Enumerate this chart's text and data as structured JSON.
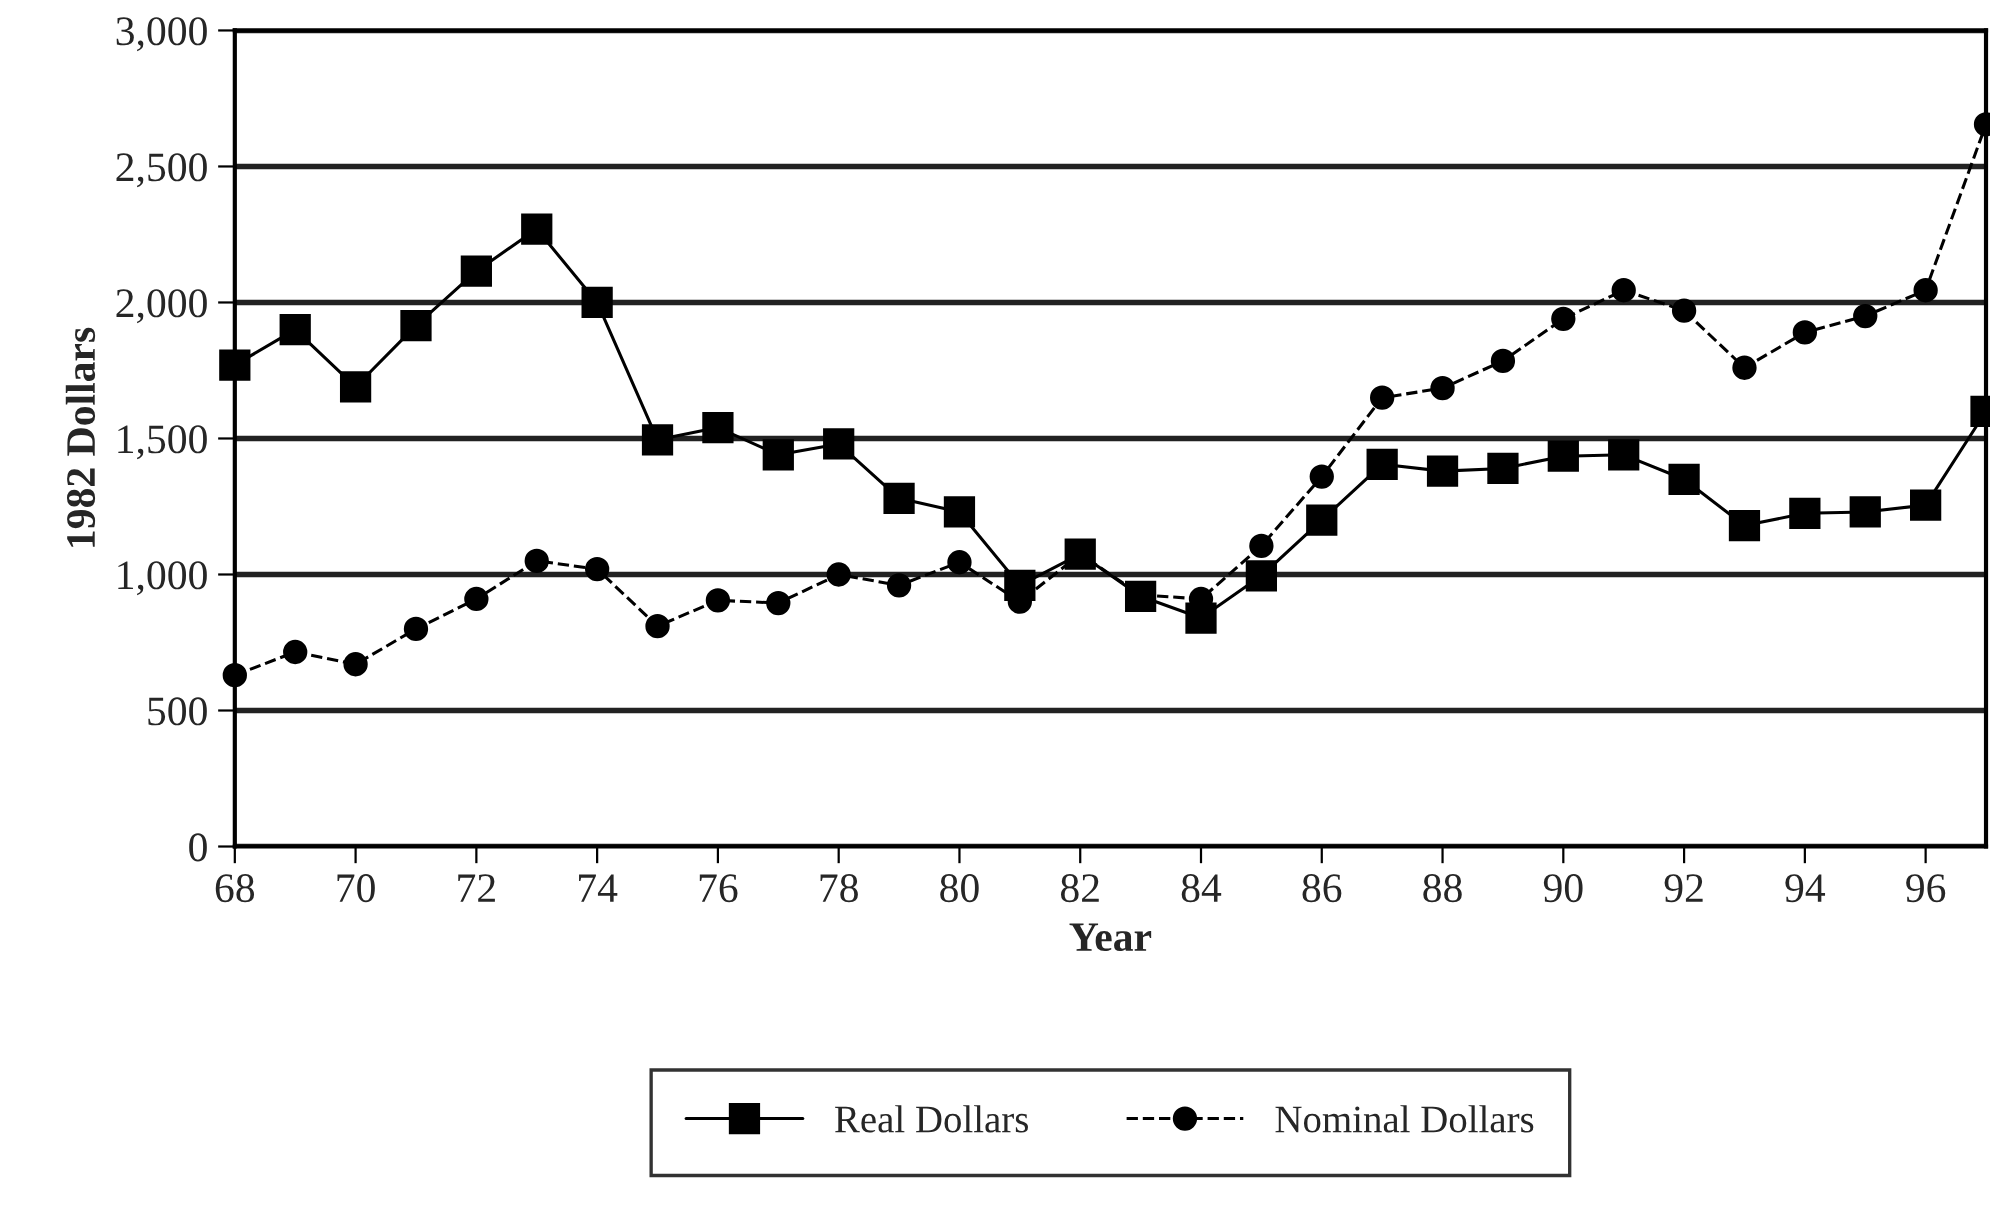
{
  "chart_data": {
    "type": "line",
    "xlabel": "Year",
    "ylabel": "1982 Dollars",
    "x": [
      68,
      69,
      70,
      71,
      72,
      73,
      74,
      75,
      76,
      77,
      78,
      79,
      80,
      81,
      82,
      83,
      84,
      85,
      86,
      87,
      88,
      89,
      90,
      91,
      92,
      93,
      94,
      95,
      96,
      97
    ],
    "series": [
      {
        "name": "Real Dollars",
        "color": "#000000",
        "marker": "square",
        "line_style": "solid",
        "values": [
          1770,
          1900,
          1690,
          1915,
          2115,
          2270,
          2000,
          1495,
          1540,
          1440,
          1480,
          1280,
          1230,
          960,
          1075,
          920,
          840,
          995,
          1200,
          1405,
          1380,
          1390,
          1435,
          1440,
          1350,
          1180,
          1225,
          1230,
          1255,
          1600
        ]
      },
      {
        "name": "Nominal Dollars",
        "color": "#000000",
        "marker": "circle",
        "line_style": "dashed",
        "values": [
          630,
          715,
          670,
          800,
          910,
          1050,
          1020,
          810,
          905,
          895,
          1000,
          960,
          1045,
          900,
          1075,
          925,
          910,
          1105,
          1360,
          1650,
          1685,
          1785,
          1940,
          2045,
          1970,
          1760,
          1890,
          1950,
          2045,
          2655
        ]
      }
    ],
    "xlim": [
      68,
      97
    ],
    "xticks": [
      68,
      70,
      72,
      74,
      76,
      78,
      80,
      82,
      84,
      86,
      88,
      90,
      92,
      94,
      96
    ],
    "ylim": [
      0,
      3000
    ],
    "yticks": [
      {
        "value": 0,
        "label": "0"
      },
      {
        "value": 500,
        "label": "500"
      },
      {
        "value": 1000,
        "label": "1,000"
      },
      {
        "value": 1500,
        "label": "1,500"
      },
      {
        "value": 2000,
        "label": "2,000"
      },
      {
        "value": 2500,
        "label": "2,500"
      },
      {
        "value": 3000,
        "label": "3,000"
      }
    ],
    "grid": "y",
    "legend": "bottom"
  }
}
